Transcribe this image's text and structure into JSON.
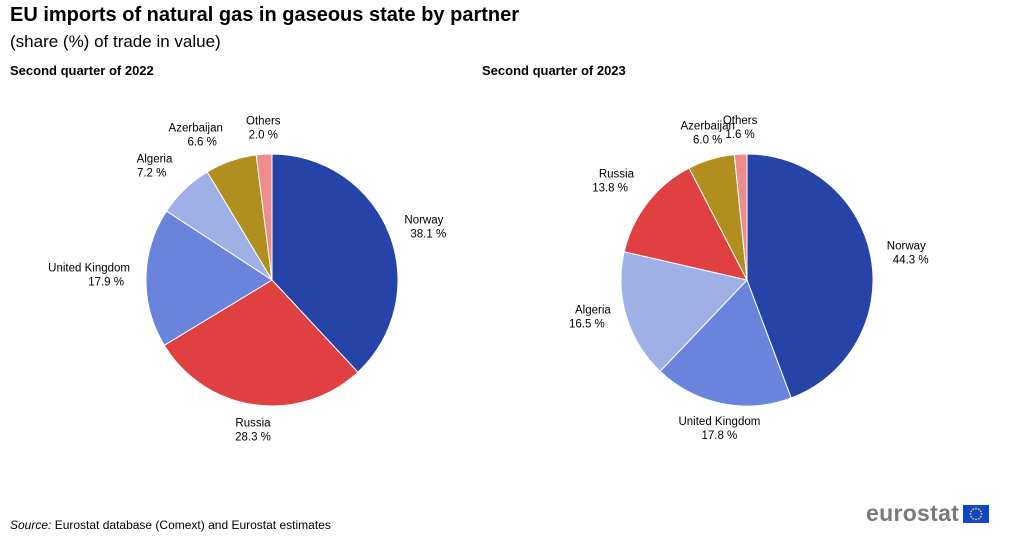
{
  "header": {
    "title": "EU imports of natural gas in gaseous state by partner",
    "subtitle": "(share (%) of trade in value)"
  },
  "chart_data": [
    {
      "type": "pie",
      "title": "Second quarter of 2022",
      "start_angle_deg": 0,
      "direction": "clockwise",
      "slices": [
        {
          "label": "Norway",
          "value": 38.1,
          "value_label": "38.1 %",
          "color": "#2644a8"
        },
        {
          "label": "Russia",
          "value": 28.3,
          "value_label": "28.3 %",
          "color": "#e04040"
        },
        {
          "label": "United Kingdom",
          "value": 17.9,
          "value_label": "17.9 %",
          "color": "#6a84dd"
        },
        {
          "label": "Algeria",
          "value": 7.2,
          "value_label": "7.2 %",
          "color": "#9fb0e6"
        },
        {
          "label": "Azerbaijan",
          "value": 6.6,
          "value_label": "6.6 %",
          "color": "#b08f1e"
        },
        {
          "label": "Others",
          "value": 2.0,
          "value_label": "2.0 %",
          "color": "#ee8c8c"
        }
      ]
    },
    {
      "type": "pie",
      "title": "Second quarter of 2023",
      "start_angle_deg": 0,
      "direction": "clockwise",
      "slices": [
        {
          "label": "Norway",
          "value": 44.3,
          "value_label": "44.3 %",
          "color": "#2644a8"
        },
        {
          "label": "United Kingdom",
          "value": 17.8,
          "value_label": "17.8 %",
          "color": "#6a84dd"
        },
        {
          "label": "Algeria",
          "value": 16.5,
          "value_label": "16.5 %",
          "color": "#9fb0e6"
        },
        {
          "label": "Russia",
          "value": 13.8,
          "value_label": "13.8 %",
          "color": "#e04040"
        },
        {
          "label": "Azerbaijan",
          "value": 6.0,
          "value_label": "6.0 %",
          "color": "#b08f1e"
        },
        {
          "label": "Others",
          "value": 1.6,
          "value_label": "1.6 %",
          "color": "#ee8c8c"
        }
      ]
    }
  ],
  "footer": {
    "source_label": "Source:",
    "source_text": " Eurostat database (Comext) and Eurostat estimates",
    "logo_text": "eurostat"
  }
}
